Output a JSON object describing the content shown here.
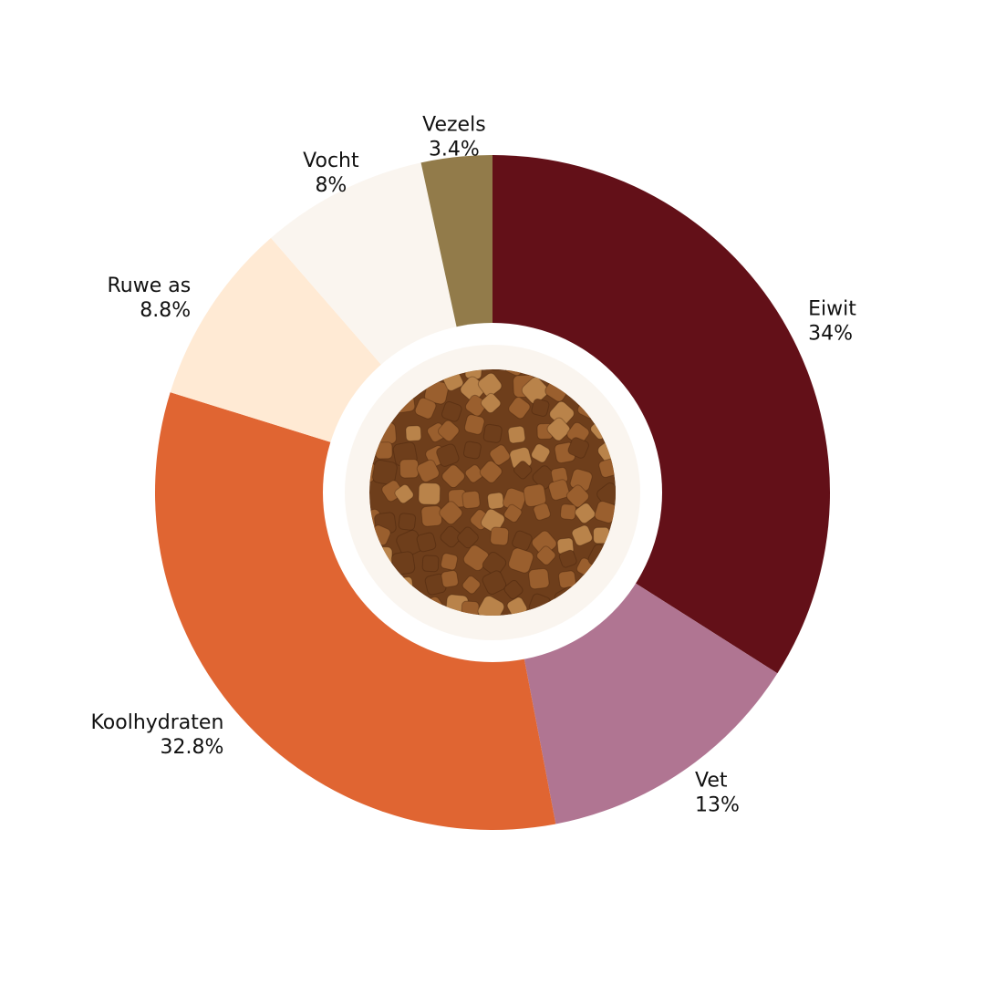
{
  "chart_data": {
    "type": "pie",
    "variant": "donut",
    "title": "",
    "slices": [
      {
        "label": "Eiwit",
        "value": 34,
        "value_label": "34%",
        "color": "#631018"
      },
      {
        "label": "Vet",
        "value": 13,
        "value_label": "13%",
        "color": "#B07592"
      },
      {
        "label": "Koolhydraten",
        "value": 32.8,
        "value_label": "32.8%",
        "color": "#E06532"
      },
      {
        "label": "Ruwe as",
        "value": 8.8,
        "value_label": "8.8%",
        "color": "#FFEAD4"
      },
      {
        "label": "Vocht",
        "value": 8,
        "value_label": "8%",
        "color": "#FAF5EF"
      },
      {
        "label": "Vezels",
        "value": 3.4,
        "value_label": "3.4%",
        "color": "#927B4A"
      }
    ],
    "start": "12 o'clock",
    "direction": "clockwise",
    "legend": "none",
    "center_image": "dry pet food kibble"
  },
  "colors": {
    "background": "#FFFFFF",
    "center_ring": "#FFFFFF",
    "center_disc": "#FAF5EF",
    "kibble_dark": "#6E3E1B",
    "kibble_mid": "#9A5F2E",
    "kibble_light": "#B9834A",
    "label_text": "#111111"
  }
}
